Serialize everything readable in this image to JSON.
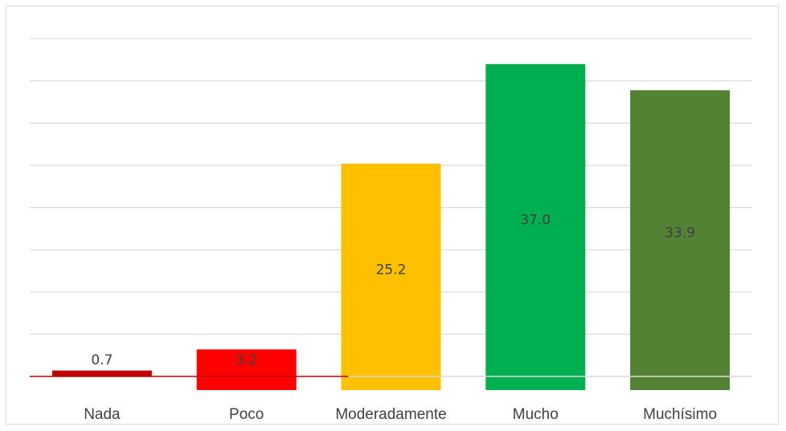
{
  "chart_data": {
    "type": "bar",
    "title": "",
    "xlabel": "",
    "ylabel": "",
    "categories": [
      "Nada",
      "Poco",
      "Moderadamente",
      "Mucho",
      "Muchísimo"
    ],
    "values": [
      0.7,
      3.2,
      25.2,
      37.0,
      33.9
    ],
    "value_labels": [
      "0.7",
      "3.2",
      "25.2",
      "37.0",
      "33.9"
    ],
    "colors": [
      "#c00000",
      "#ff0000",
      "#ffc000",
      "#00b050",
      "#548235"
    ],
    "ylim": [
      0,
      40
    ],
    "gridlines": true,
    "legend": "none"
  }
}
